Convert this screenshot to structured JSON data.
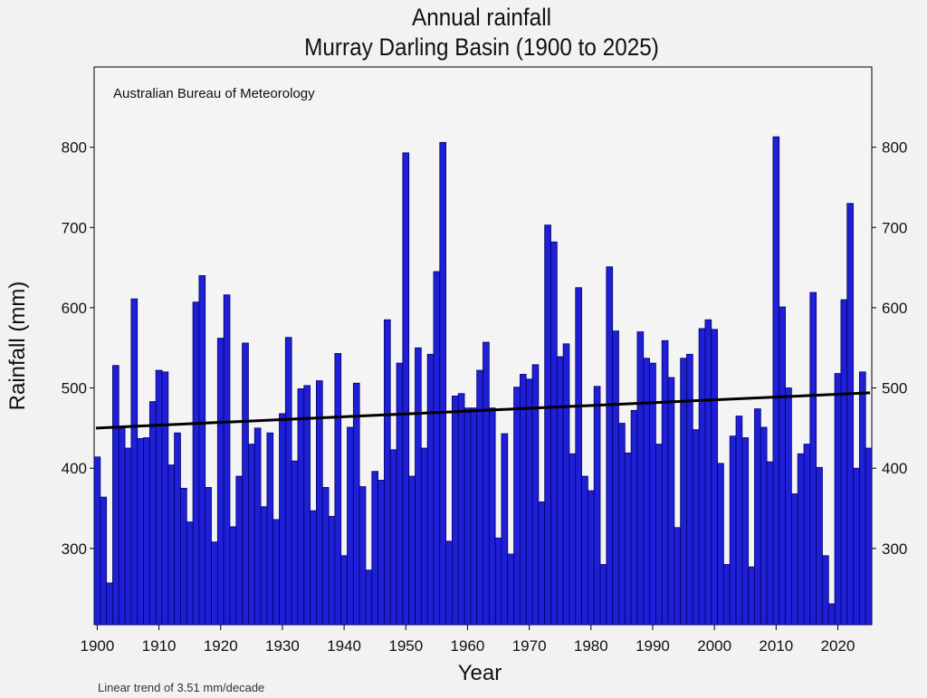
{
  "chart_data": {
    "type": "bar",
    "title": "Annual rainfall",
    "subtitle": "Murray Darling Basin (1900 to 2025)",
    "source_label": "Australian Bureau of Meteorology",
    "trend_label": "Linear  trend of 3.51 mm/decade",
    "xlabel": "Year",
    "ylabel": "Rainfall (mm)",
    "xlim": [
      1900,
      2025
    ],
    "ylim": [
      205,
      900
    ],
    "x_ticks": [
      1900,
      1910,
      1920,
      1930,
      1940,
      1950,
      1960,
      1970,
      1980,
      1990,
      2000,
      2010,
      2020
    ],
    "y_ticks": [
      300,
      400,
      500,
      600,
      700,
      800
    ],
    "bar_color": "#1f1fd6",
    "bar_edge_color": "#00006a",
    "trend_color": "#000000",
    "trend": {
      "slope_per_decade": 3.51,
      "start_value": 450,
      "end_value": 494
    },
    "years": [
      1900,
      1901,
      1902,
      1903,
      1904,
      1905,
      1906,
      1907,
      1908,
      1909,
      1910,
      1911,
      1912,
      1913,
      1914,
      1915,
      1916,
      1917,
      1918,
      1919,
      1920,
      1921,
      1922,
      1923,
      1924,
      1925,
      1926,
      1927,
      1928,
      1929,
      1930,
      1931,
      1932,
      1933,
      1934,
      1935,
      1936,
      1937,
      1938,
      1939,
      1940,
      1941,
      1942,
      1943,
      1944,
      1945,
      1946,
      1947,
      1948,
      1949,
      1950,
      1951,
      1952,
      1953,
      1954,
      1955,
      1956,
      1957,
      1958,
      1959,
      1960,
      1961,
      1962,
      1963,
      1964,
      1965,
      1966,
      1967,
      1968,
      1969,
      1970,
      1971,
      1972,
      1973,
      1974,
      1975,
      1976,
      1977,
      1978,
      1979,
      1980,
      1981,
      1982,
      1983,
      1984,
      1985,
      1986,
      1987,
      1988,
      1989,
      1990,
      1991,
      1992,
      1993,
      1994,
      1995,
      1996,
      1997,
      1998,
      1999,
      2000,
      2001,
      2002,
      2003,
      2004,
      2005,
      2006,
      2007,
      2008,
      2009,
      2010,
      2011,
      2012,
      2013,
      2014,
      2015,
      2016,
      2017,
      2018,
      2019,
      2020,
      2021,
      2022,
      2023,
      2024,
      2025
    ],
    "values": [
      414,
      364,
      257,
      528,
      450,
      425,
      611,
      437,
      438,
      483,
      522,
      520,
      404,
      444,
      375,
      333,
      607,
      640,
      376,
      308,
      562,
      616,
      327,
      390,
      556,
      430,
      450,
      352,
      444,
      336,
      468,
      563,
      409,
      499,
      503,
      347,
      509,
      376,
      340,
      543,
      291,
      451,
      506,
      377,
      273,
      396,
      385,
      585,
      423,
      531,
      793,
      390,
      550,
      425,
      542,
      645,
      806,
      309,
      490,
      493,
      475,
      475,
      522,
      557,
      475,
      313,
      443,
      293,
      501,
      517,
      511,
      529,
      358,
      703,
      682,
      539,
      555,
      418,
      625,
      390,
      372,
      502,
      280,
      651,
      571,
      456,
      419,
      472,
      570,
      537,
      531,
      430,
      559,
      513,
      326,
      537,
      542,
      448,
      574,
      585,
      573,
      406,
      280,
      440,
      465,
      438,
      277,
      474,
      451,
      408,
      813,
      601,
      500,
      368,
      418,
      430,
      619,
      401,
      291,
      231,
      518,
      610,
      730,
      400,
      520,
      425
    ]
  }
}
